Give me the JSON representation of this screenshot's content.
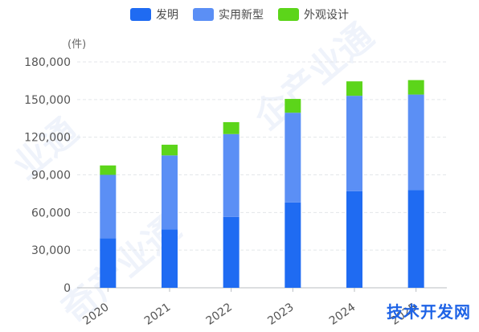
{
  "legend": [
    {
      "label": "发明",
      "color": "#1f6bf2"
    },
    {
      "label": "实用新型",
      "color": "#5b8ff5"
    },
    {
      "label": "外观设计",
      "color": "#5cd51a"
    }
  ],
  "unit_label": "(件)",
  "watermark_text": "技术开发网",
  "chart_data": {
    "type": "bar",
    "stacked": true,
    "categories": [
      "2020",
      "2021",
      "2022",
      "2023",
      "2024",
      "2025"
    ],
    "series": [
      {
        "name": "发明",
        "color": "#1f6bf2",
        "values": [
          39500,
          46500,
          56500,
          68000,
          77000,
          78000
        ]
      },
      {
        "name": "实用新型",
        "color": "#5b8ff5",
        "values": [
          50500,
          59000,
          66000,
          71500,
          76000,
          76000
        ]
      },
      {
        "name": "外观设计",
        "color": "#5cd51a",
        "values": [
          7500,
          8500,
          9500,
          11000,
          11500,
          11500
        ]
      }
    ],
    "ylim": [
      0,
      180000
    ],
    "yticks": [
      "0",
      "30,000",
      "60,000",
      "90,000",
      "120,000",
      "150,000",
      "180,000"
    ],
    "ytick_values": [
      0,
      30000,
      60000,
      90000,
      120000,
      150000,
      180000
    ],
    "grid": true,
    "legend_position": "top-center"
  }
}
